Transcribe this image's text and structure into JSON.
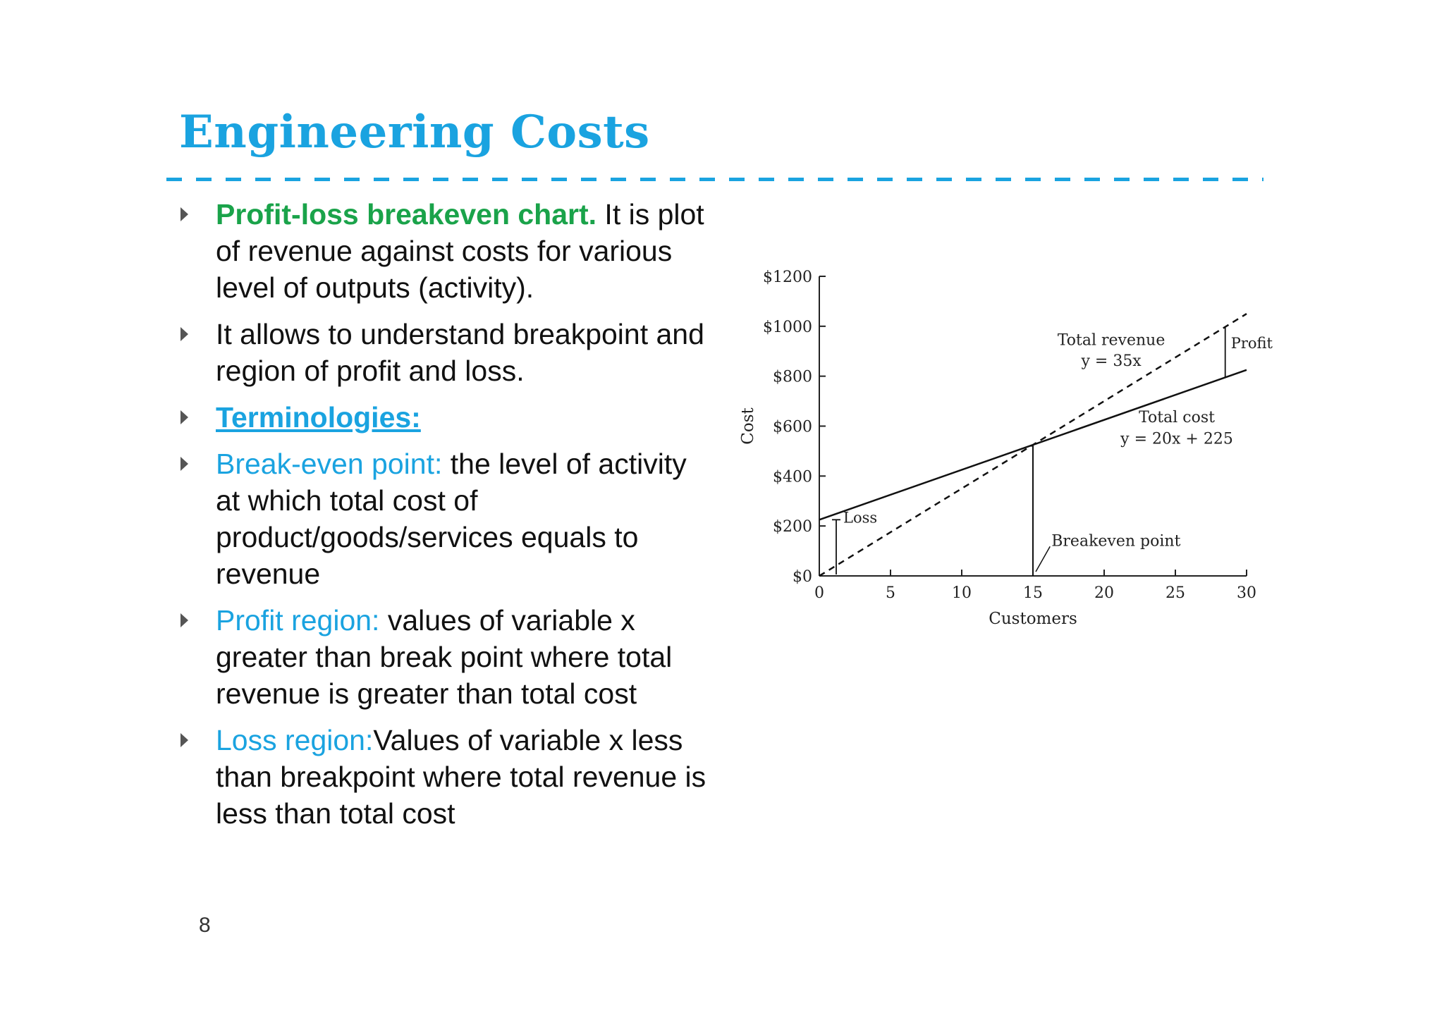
{
  "slide": {
    "title": "Engineering Costs",
    "page_number": "8",
    "accent_color": "#1aa3e0",
    "highlight_color": "#1aa34a"
  },
  "bullets": [
    {
      "lead": "Profit-loss breakeven chart.",
      "text": " It is plot of revenue against costs for various level of outputs (activity)."
    },
    {
      "lead": "",
      "text": "It allows to understand breakpoint and region of profit and loss."
    },
    {
      "lead": "Terminologies:",
      "text": ""
    },
    {
      "lead": "Break-even point:",
      "text": " the level of activity at which total cost of product/goods/services equals to revenue"
    },
    {
      "lead": "Profit region:",
      "text": " values of variable x greater than break point where total revenue is greater than total cost"
    },
    {
      "lead": "Loss region:",
      "text": "Values of variable x less than breakpoint where total revenue is less than total cost"
    }
  ],
  "chart_data": {
    "type": "line",
    "xlabel": "Customers",
    "ylabel": "Cost",
    "x_ticks": [
      "0",
      "5",
      "10",
      "15",
      "20",
      "25",
      "30"
    ],
    "y_ticks": [
      "$0",
      "$200",
      "$400",
      "$600",
      "$800",
      "$1000",
      "$1200"
    ],
    "xlim": [
      0,
      30
    ],
    "ylim": [
      0,
      1200
    ],
    "grid": false,
    "series": [
      {
        "name": "Total revenue",
        "equation": "y = 35x",
        "style": "dashed",
        "x": [
          0,
          30
        ],
        "y": [
          0,
          1050
        ]
      },
      {
        "name": "Total cost",
        "equation": "y = 20x + 225",
        "style": "solid",
        "x": [
          0,
          30
        ],
        "y": [
          225,
          825
        ]
      }
    ],
    "annotations": {
      "breakeven": "Breakeven point",
      "breakeven_x": 15,
      "breakeven_y": 525,
      "loss": "Loss",
      "profit": "Profit"
    }
  }
}
